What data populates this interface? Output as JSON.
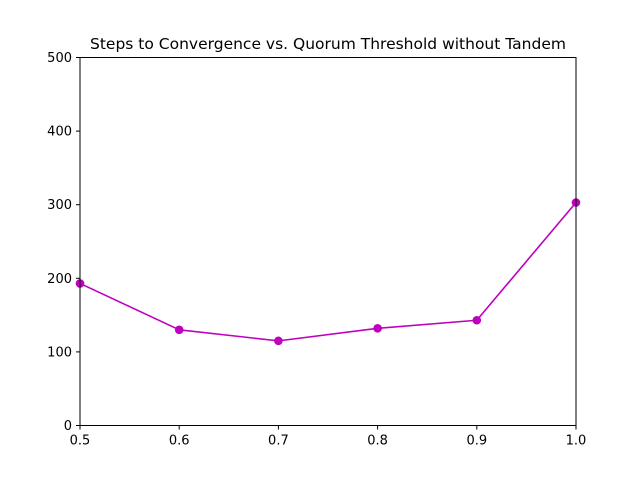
{
  "chart_data": {
    "type": "line",
    "title": "Steps to Convergence vs. Quorum Threshold without Tandem",
    "xlabel": "",
    "ylabel": "",
    "x": [
      0.5,
      0.6,
      0.7,
      0.8,
      0.9,
      1.0
    ],
    "series": [
      {
        "values": [
          193,
          130,
          115,
          132,
          143,
          303
        ],
        "color": "#bf00bf",
        "marker": "circle"
      }
    ],
    "xlim": [
      0.5,
      1.0
    ],
    "ylim": [
      0,
      500
    ],
    "xticks": [
      "0.5",
      "0.6",
      "0.7",
      "0.8",
      "0.9",
      "1.0"
    ],
    "yticks": [
      "0",
      "100",
      "200",
      "300",
      "400",
      "500"
    ],
    "grid": false,
    "legend": "none"
  }
}
